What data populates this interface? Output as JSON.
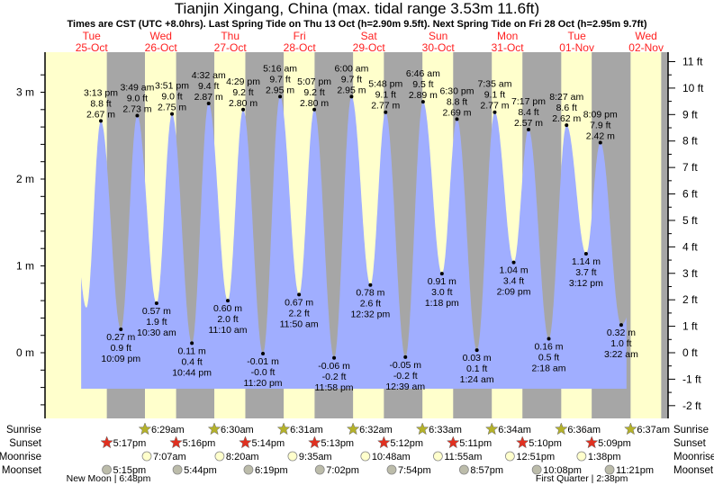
{
  "chart_data": {
    "type": "area",
    "title": "Tianjin Xingang, China (max. tidal range 3.53m 11.6ft)",
    "subtitle": "Times are CST (UTC +8.0hrs). Last Spring Tide on Thu 13 Oct (h=2.90m 9.5ft). Next Spring Tide on Fri 28 Oct (h=2.95m 9.7ft)",
    "days": [
      {
        "dow": "Tue",
        "date": "25-Oct"
      },
      {
        "dow": "Wed",
        "date": "26-Oct"
      },
      {
        "dow": "Thu",
        "date": "27-Oct"
      },
      {
        "dow": "Fri",
        "date": "28-Oct"
      },
      {
        "dow": "Sat",
        "date": "29-Oct"
      },
      {
        "dow": "Sun",
        "date": "30-Oct"
      },
      {
        "dow": "Mon",
        "date": "31-Oct"
      },
      {
        "dow": "Tue",
        "date": "01-Nov"
      },
      {
        "dow": "Wed",
        "date": "02-Nov"
      }
    ],
    "y_left": {
      "unit": "m",
      "ticks": [
        "0 m",
        "1 m",
        "2 m",
        "3 m"
      ],
      "values": [
        0,
        1,
        2,
        3
      ]
    },
    "y_right": {
      "unit": "ft",
      "ticks": [
        "-2 ft",
        "-1 ft",
        "0 ft",
        "1 ft",
        "2 ft",
        "3 ft",
        "4 ft",
        "5 ft",
        "6 ft",
        "7 ft",
        "8 ft",
        "9 ft",
        "10 ft",
        "11 ft"
      ],
      "values": [
        -2,
        -1,
        0,
        1,
        2,
        3,
        4,
        5,
        6,
        7,
        8,
        9,
        10,
        11
      ]
    },
    "tides": [
      {
        "type": "high",
        "day": 0,
        "time": "3:13 pm",
        "m": "2.67 m",
        "ft": "8.8 ft",
        "h": 2.67
      },
      {
        "type": "low",
        "day": 0,
        "time": "10:09 pm",
        "m": "0.27 m",
        "ft": "0.9 ft",
        "h": 0.27
      },
      {
        "type": "high",
        "day": 1,
        "time": "3:49 am",
        "m": "2.73 m",
        "ft": "9.0 ft",
        "h": 2.73
      },
      {
        "type": "low",
        "day": 1,
        "time": "10:30 am",
        "m": "0.57 m",
        "ft": "1.9 ft",
        "h": 0.57
      },
      {
        "type": "high",
        "day": 1,
        "time": "3:51 pm",
        "m": "2.75 m",
        "ft": "9.0 ft",
        "h": 2.75
      },
      {
        "type": "low",
        "day": 1,
        "time": "10:44 pm",
        "m": "0.11 m",
        "ft": "0.4 ft",
        "h": 0.11
      },
      {
        "type": "high",
        "day": 2,
        "time": "4:32 am",
        "m": "2.87 m",
        "ft": "9.4 ft",
        "h": 2.87
      },
      {
        "type": "low",
        "day": 2,
        "time": "11:10 am",
        "m": "0.60 m",
        "ft": "2.0 ft",
        "h": 0.6
      },
      {
        "type": "high",
        "day": 2,
        "time": "4:29 pm",
        "m": "2.80 m",
        "ft": "9.2 ft",
        "h": 2.8
      },
      {
        "type": "low",
        "day": 2,
        "time": "11:20 pm",
        "m": "-0.01 m",
        "ft": "-0.0 ft",
        "h": -0.01
      },
      {
        "type": "high",
        "day": 3,
        "time": "5:16 am",
        "m": "2.95 m",
        "ft": "9.7 ft",
        "h": 2.95
      },
      {
        "type": "low",
        "day": 3,
        "time": "11:50 am",
        "m": "0.67 m",
        "ft": "2.2 ft",
        "h": 0.67
      },
      {
        "type": "high",
        "day": 3,
        "time": "5:07 pm",
        "m": "2.80 m",
        "ft": "9.2 ft",
        "h": 2.8
      },
      {
        "type": "low",
        "day": 3,
        "time": "11:58 pm",
        "m": "-0.06 m",
        "ft": "-0.2 ft",
        "h": -0.06
      },
      {
        "type": "high",
        "day": 4,
        "time": "6:00 am",
        "m": "2.95 m",
        "ft": "9.7 ft",
        "h": 2.95
      },
      {
        "type": "low",
        "day": 4,
        "time": "12:32 pm",
        "m": "0.78 m",
        "ft": "2.6 ft",
        "h": 0.78
      },
      {
        "type": "high",
        "day": 4,
        "time": "5:48 pm",
        "m": "2.77 m",
        "ft": "9.1 ft",
        "h": 2.77
      },
      {
        "type": "low",
        "day": 5,
        "time": "12:39 am",
        "m": "-0.05 m",
        "ft": "-0.2 ft",
        "h": -0.05
      },
      {
        "type": "high",
        "day": 5,
        "time": "6:46 am",
        "m": "2.89 m",
        "ft": "9.5 ft",
        "h": 2.89
      },
      {
        "type": "low",
        "day": 5,
        "time": "1:18 pm",
        "m": "0.91 m",
        "ft": "3.0 ft",
        "h": 0.91
      },
      {
        "type": "high",
        "day": 5,
        "time": "6:30 pm",
        "m": "2.69 m",
        "ft": "8.8 ft",
        "h": 2.69
      },
      {
        "type": "low",
        "day": 6,
        "time": "1:24 am",
        "m": "0.03 m",
        "ft": "0.1 ft",
        "h": 0.03
      },
      {
        "type": "high",
        "day": 6,
        "time": "7:35 am",
        "m": "2.77 m",
        "ft": "9.1 ft",
        "h": 2.77
      },
      {
        "type": "low",
        "day": 6,
        "time": "2:09 pm",
        "m": "1.04 m",
        "ft": "3.4 ft",
        "h": 1.04
      },
      {
        "type": "high",
        "day": 6,
        "time": "7:17 pm",
        "m": "2.57 m",
        "ft": "8.4 ft",
        "h": 2.57
      },
      {
        "type": "low",
        "day": 7,
        "time": "2:18 am",
        "m": "0.16 m",
        "ft": "0.5 ft",
        "h": 0.16
      },
      {
        "type": "high",
        "day": 7,
        "time": "8:27 am",
        "m": "2.62 m",
        "ft": "8.6 ft",
        "h": 2.62
      },
      {
        "type": "low",
        "day": 7,
        "time": "3:12 pm",
        "m": "1.14 m",
        "ft": "3.7 ft",
        "h": 1.14
      },
      {
        "type": "high",
        "day": 7,
        "time": "8:09 pm",
        "m": "2.42 m",
        "ft": "7.9 ft",
        "h": 2.42
      },
      {
        "type": "low",
        "day": 8,
        "time": "3:22 am",
        "m": "0.32 m",
        "ft": "1.0 ft",
        "h": 0.32
      }
    ]
  },
  "almanac": {
    "labels": {
      "sunrise": "Sunrise",
      "sunset": "Sunset",
      "moonrise": "Moonrise",
      "moonset": "Moonset"
    },
    "sunrise": [
      {
        "day": 1,
        "t": "6:29am"
      },
      {
        "day": 2,
        "t": "6:30am"
      },
      {
        "day": 3,
        "t": "6:31am"
      },
      {
        "day": 4,
        "t": "6:32am"
      },
      {
        "day": 5,
        "t": "6:33am"
      },
      {
        "day": 6,
        "t": "6:34am"
      },
      {
        "day": 7,
        "t": "6:36am"
      },
      {
        "day": 8,
        "t": "6:37am"
      }
    ],
    "sunset": [
      {
        "day": 0,
        "t": "5:17pm"
      },
      {
        "day": 1,
        "t": "5:16pm"
      },
      {
        "day": 2,
        "t": "5:14pm"
      },
      {
        "day": 3,
        "t": "5:13pm"
      },
      {
        "day": 4,
        "t": "5:12pm"
      },
      {
        "day": 5,
        "t": "5:11pm"
      },
      {
        "day": 6,
        "t": "5:10pm"
      },
      {
        "day": 7,
        "t": "5:09pm"
      }
    ],
    "moonrise": [
      {
        "day": 1,
        "t": "7:07am"
      },
      {
        "day": 2,
        "t": "8:20am"
      },
      {
        "day": 3,
        "t": "9:35am"
      },
      {
        "day": 4,
        "t": "10:48am"
      },
      {
        "day": 5,
        "t": "11:55am"
      },
      {
        "day": 6,
        "t": "12:51pm"
      },
      {
        "day": 7,
        "t": "1:38pm"
      }
    ],
    "moonset": [
      {
        "day": 0,
        "t": "5:15pm"
      },
      {
        "day": 1,
        "t": "5:44pm"
      },
      {
        "day": 2,
        "t": "6:19pm"
      },
      {
        "day": 3,
        "t": "7:02pm"
      },
      {
        "day": 4,
        "t": "7:54pm"
      },
      {
        "day": 5,
        "t": "8:57pm"
      },
      {
        "day": 6,
        "t": "10:08pm"
      },
      {
        "day": 7,
        "t": "11:21pm"
      }
    ],
    "moon_phases": [
      {
        "label": "New Moon | 6:48pm",
        "day": 0,
        "t": "6:48pm"
      },
      {
        "label": "First Quarter | 2:38pm",
        "day": 7,
        "t": "2:38pm"
      }
    ]
  },
  "colors": {
    "day": "#ffffcc",
    "night": "#a6a6a6",
    "water": "#a0aeff",
    "date": "#ff2020",
    "sunrise": "#b5b22a",
    "sunset": "#e03020",
    "moonrise": "#ffffcc",
    "moonset": "#bcbcaa"
  }
}
